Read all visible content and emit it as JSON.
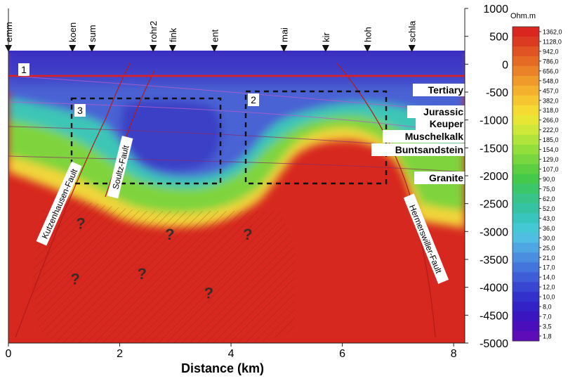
{
  "chart_data": {
    "type": "heatmap",
    "title": "",
    "xlabel": "Distance (km)",
    "ylabel": "",
    "xlim": [
      0,
      8.2
    ],
    "ylim": [
      -5000,
      1000
    ],
    "x_ticks": [
      0,
      2,
      4,
      6,
      8
    ],
    "y_ticks": [
      1000,
      500,
      0,
      -500,
      -1000,
      -1500,
      -2000,
      -2500,
      -3000,
      -3500,
      -4000,
      -4500,
      -5000
    ],
    "colorbar": {
      "unit": "Ohm.m",
      "labels": [
        "1362,0",
        "1128,0",
        "942,0",
        "786,0",
        "656,0",
        "548,0",
        "457,0",
        "382,0",
        "318,0",
        "266,0",
        "222,0",
        "185,0",
        "154,0",
        "129,0",
        "107,0",
        "90,0",
        "75,0",
        "62,0",
        "52,0",
        "43,0",
        "36,0",
        "30,0",
        "25,0",
        "21,0",
        "17,0",
        "14,0",
        "12,0",
        "10,0",
        "8,0",
        "7,0",
        "3,5",
        "1,8"
      ],
      "colors": [
        "#d9261f",
        "#db3b20",
        "#e05423",
        "#e56b25",
        "#ea8228",
        "#ef9a2b",
        "#f3b12e",
        "#f6c631",
        "#f4da33",
        "#e7e635",
        "#cde838",
        "#b1e43a",
        "#94de3c",
        "#78d73f",
        "#5bcf41",
        "#45c94a",
        "#3cc66a",
        "#38c489",
        "#36c3a4",
        "#38c5bd",
        "#44c8d3",
        "#50bde2",
        "#4ea6e3",
        "#4a8ee0",
        "#4475dc",
        "#3e5dd7",
        "#3846d2",
        "#3331cc",
        "#3322c6",
        "#3b16c0",
        "#4a0fbb",
        "#5e0cb7"
      ]
    },
    "stations": [
      "emm",
      "koen",
      "sum",
      "rohr2",
      "fink",
      "ent",
      "mai",
      "kir",
      "hoh",
      "schla"
    ],
    "layers": [
      "Tertiary",
      "Jurassic",
      "Keuper",
      "Muschelkalk",
      "Buntsandstein",
      "Granite"
    ],
    "faults": [
      "Kutzenhausen-Fault",
      "Soultz-Fault",
      "Hermerswiller-Fault"
    ],
    "boxes": [
      "1",
      "2",
      "3"
    ],
    "unknown_marker": "?",
    "question_marks": [
      {
        "x": 1.3,
        "y": -2950
      },
      {
        "x": 2.9,
        "y": -3150
      },
      {
        "x": 4.3,
        "y": -3150
      },
      {
        "x": 1.2,
        "y": -3950
      },
      {
        "x": 2.4,
        "y": -3850
      },
      {
        "x": 3.6,
        "y": -4200
      }
    ],
    "colors": {
      "conductive": "#4a3fc8",
      "resistive": "#d7281f",
      "boundary": "#f1d43a",
      "box_line": "#e21f1f"
    }
  }
}
